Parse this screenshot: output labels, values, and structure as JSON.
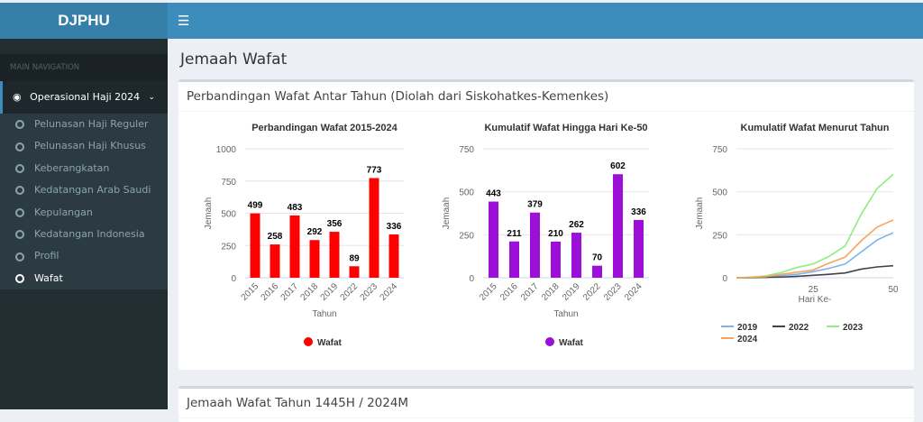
{
  "header": {
    "logo": "DJPHU",
    "toggle_icon": "hamburger-icon"
  },
  "sidebar": {
    "nav_header": "MAIN NAVIGATION",
    "parent": {
      "label": "Operasional Haji 2024",
      "icon": "dashboard-icon"
    },
    "items": [
      {
        "label": "Pelunasan Haji Reguler"
      },
      {
        "label": "Pelunasan Haji Khusus"
      },
      {
        "label": "Keberangkatan"
      },
      {
        "label": "Kedatangan Arab Saudi"
      },
      {
        "label": "Kepulangan"
      },
      {
        "label": "Kedatangan Indonesia"
      },
      {
        "label": "Profil"
      },
      {
        "label": "Wafat",
        "active": true
      }
    ]
  },
  "page": {
    "title": "Jemaah Wafat",
    "box1_title": "Perbandingan Wafat Antar Tahun (Diolah dari Siskohatkes-Kemenkes)",
    "box2_title": "Jemaah Wafat Tahun 1445H / 2024M"
  },
  "chart_data": [
    {
      "type": "bar",
      "title": "Perbandingan Wafat 2015-2024",
      "xlabel": "Tahun",
      "ylabel": "Jemaah",
      "ylim": [
        0,
        1000
      ],
      "yticks": [
        0,
        250,
        500,
        750,
        1000
      ],
      "categories": [
        "2015",
        "2016",
        "2017",
        "2018",
        "2019",
        "2022",
        "2023",
        "2024"
      ],
      "values": [
        499,
        258,
        483,
        292,
        356,
        89,
        773,
        336
      ],
      "series_name": "Wafat",
      "color": "#ff0000",
      "legend": "bottom"
    },
    {
      "type": "bar",
      "title": "Kumulatif Wafat Hingga Hari Ke-50",
      "xlabel": "Tahun",
      "ylabel": "Jemaah",
      "ylim": [
        0,
        750
      ],
      "yticks": [
        0,
        250,
        500,
        750
      ],
      "categories": [
        "2015",
        "2016",
        "2017",
        "2018",
        "2019",
        "2022",
        "2023",
        "2024"
      ],
      "values": [
        443,
        211,
        379,
        210,
        262,
        70,
        602,
        336
      ],
      "series_name": "Wafat",
      "color": "#9b0fd6",
      "legend": "bottom"
    },
    {
      "type": "line",
      "title": "Kumulatif Wafat Menurut Tahun",
      "xlabel": "Hari Ke-",
      "ylabel": "Jemaah",
      "ylim": [
        0,
        750
      ],
      "yticks": [
        0,
        250,
        500,
        750
      ],
      "xlim": [
        1,
        50
      ],
      "xticks": [
        25,
        50
      ],
      "legend": "bottom",
      "x": [
        1,
        5,
        10,
        15,
        20,
        25,
        30,
        35,
        40,
        45,
        50
      ],
      "series": [
        {
          "name": "2019",
          "color": "#7cb5ec",
          "values": [
            0,
            1,
            4,
            12,
            20,
            35,
            55,
            80,
            150,
            220,
            262
          ]
        },
        {
          "name": "2022",
          "color": "#434348",
          "values": [
            0,
            0,
            2,
            4,
            8,
            14,
            20,
            28,
            50,
            63,
            70
          ]
        },
        {
          "name": "2023",
          "color": "#90ed7d",
          "values": [
            0,
            3,
            10,
            30,
            60,
            80,
            125,
            185,
            370,
            520,
            602
          ]
        },
        {
          "name": "2024",
          "color": "#f7a35c",
          "values": [
            0,
            2,
            6,
            20,
            32,
            45,
            85,
            120,
            215,
            295,
            336
          ]
        }
      ]
    }
  ]
}
